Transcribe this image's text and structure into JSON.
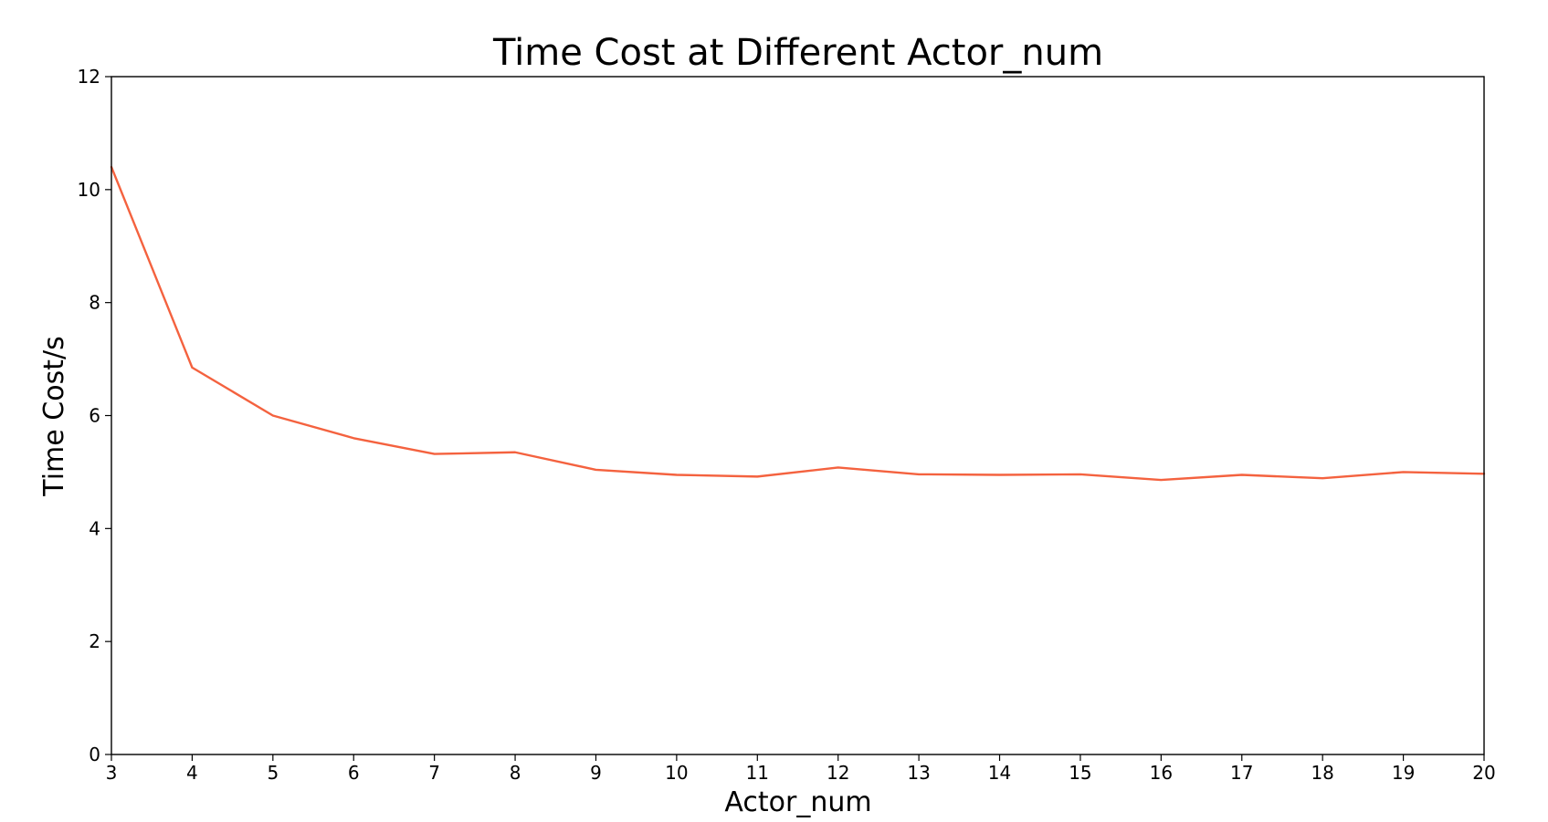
{
  "chart_data": {
    "type": "line",
    "title": "Time Cost at Different Actor_num",
    "xlabel": "Actor_num",
    "ylabel": "Time Cost/s",
    "x": [
      3,
      4,
      5,
      6,
      7,
      8,
      9,
      10,
      11,
      12,
      13,
      14,
      15,
      16,
      17,
      18,
      19,
      20
    ],
    "xticks": [
      3,
      4,
      5,
      6,
      7,
      8,
      9,
      10,
      11,
      12,
      13,
      14,
      15,
      16,
      17,
      18,
      19,
      20
    ],
    "xlim": [
      3,
      20
    ],
    "yticks": [
      0,
      2,
      4,
      6,
      8,
      10,
      12
    ],
    "ylim": [
      0,
      12
    ],
    "grid": false,
    "series": [
      {
        "color": "#f4623f",
        "values": [
          10.4,
          6.85,
          6.0,
          5.6,
          5.32,
          5.35,
          5.04,
          4.95,
          4.92,
          5.08,
          4.96,
          4.95,
          4.96,
          4.86,
          4.95,
          4.89,
          5.0,
          4.97
        ]
      }
    ]
  }
}
